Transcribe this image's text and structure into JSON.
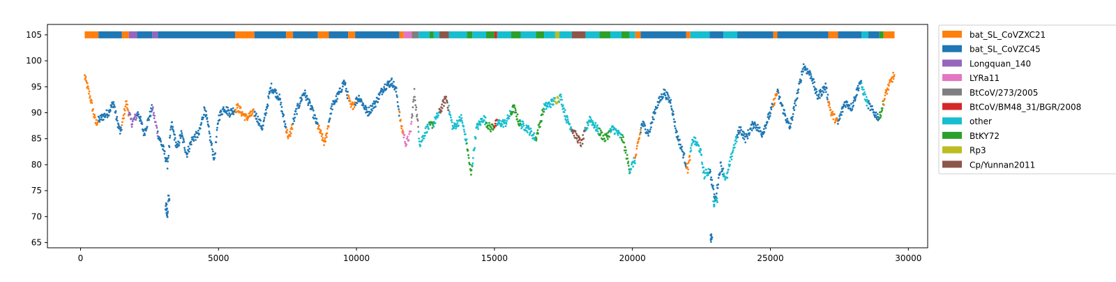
{
  "chart_data": {
    "type": "scatter",
    "title": "",
    "xlabel": "",
    "ylabel": "",
    "xlim": [
      -1200,
      30700
    ],
    "ylim": [
      64,
      107
    ],
    "xticks": [
      0,
      5000,
      10000,
      15000,
      20000,
      25000,
      30000
    ],
    "yticks": [
      65,
      70,
      75,
      80,
      85,
      90,
      95,
      100,
      105
    ],
    "legend_position": "outside-right",
    "band_y": 105,
    "legend": [
      {
        "name": "bat_SL_CoVZXC21",
        "color": "#ff7f0e"
      },
      {
        "name": "bat_SL_CoVZC45",
        "color": "#1f77b4"
      },
      {
        "name": "Longquan_140",
        "color": "#9467bd"
      },
      {
        "name": "LYRa11",
        "color": "#e377c2"
      },
      {
        "name": "BtCoV/273/2005",
        "color": "#7f7f7f"
      },
      {
        "name": "BtCoV/BM48_31/BGR/2008",
        "color": "#d62728"
      },
      {
        "name": "other",
        "color": "#17becf"
      },
      {
        "name": "BtKY72",
        "color": "#2ca02c"
      },
      {
        "name": "Rp3",
        "color": "#bcbd22"
      },
      {
        "name": "Cp/Yunnan2011",
        "color": "#8c564b"
      }
    ],
    "segments": [
      {
        "series": "bat_SL_CoVZXC21",
        "from": 150,
        "to": 650
      },
      {
        "series": "bat_SL_CoVZC45",
        "from": 650,
        "to": 1500
      },
      {
        "series": "bat_SL_CoVZXC21",
        "from": 1500,
        "to": 1750
      },
      {
        "series": "Longquan_140",
        "from": 1750,
        "to": 2050
      },
      {
        "series": "bat_SL_CoVZC45",
        "from": 2050,
        "to": 2600
      },
      {
        "series": "Longquan_140",
        "from": 2600,
        "to": 2800
      },
      {
        "series": "bat_SL_CoVZC45",
        "from": 2800,
        "to": 5600
      },
      {
        "series": "bat_SL_CoVZXC21",
        "from": 5600,
        "to": 6300
      },
      {
        "series": "bat_SL_CoVZC45",
        "from": 6300,
        "to": 7450
      },
      {
        "series": "bat_SL_CoVZXC21",
        "from": 7450,
        "to": 7700
      },
      {
        "series": "bat_SL_CoVZC45",
        "from": 7700,
        "to": 8600
      },
      {
        "series": "bat_SL_CoVZXC21",
        "from": 8600,
        "to": 9000
      },
      {
        "series": "bat_SL_CoVZC45",
        "from": 9000,
        "to": 9700
      },
      {
        "series": "bat_SL_CoVZXC21",
        "from": 9700,
        "to": 9950
      },
      {
        "series": "bat_SL_CoVZC45",
        "from": 9950,
        "to": 11550
      },
      {
        "series": "bat_SL_CoVZXC21",
        "from": 11550,
        "to": 11700
      },
      {
        "series": "LYRa11",
        "from": 11700,
        "to": 12000
      },
      {
        "series": "BtCoV/273/2005",
        "from": 12000,
        "to": 12250
      },
      {
        "series": "other",
        "from": 12250,
        "to": 12650
      },
      {
        "series": "BtKY72",
        "from": 12650,
        "to": 12800
      },
      {
        "series": "other",
        "from": 12800,
        "to": 13000
      },
      {
        "series": "Cp/Yunnan2011",
        "from": 13000,
        "to": 13350
      },
      {
        "series": "other",
        "from": 13350,
        "to": 14000
      },
      {
        "series": "BtKY72",
        "from": 14000,
        "to": 14200
      },
      {
        "series": "other",
        "from": 14200,
        "to": 14700
      },
      {
        "series": "BtKY72",
        "from": 14700,
        "to": 15000
      },
      {
        "series": "BtCoV/BM48_31/BGR/2008",
        "from": 15000,
        "to": 15100
      },
      {
        "series": "other",
        "from": 15100,
        "to": 15600
      },
      {
        "series": "BtKY72",
        "from": 15600,
        "to": 15950
      },
      {
        "series": "other",
        "from": 15950,
        "to": 16500
      },
      {
        "series": "BtKY72",
        "from": 16500,
        "to": 16800
      },
      {
        "series": "other",
        "from": 16800,
        "to": 17200
      },
      {
        "series": "Rp3",
        "from": 17200,
        "to": 17350
      },
      {
        "series": "other",
        "from": 17350,
        "to": 17800
      },
      {
        "series": "Cp/Yunnan2011",
        "from": 17800,
        "to": 18300
      },
      {
        "series": "other",
        "from": 18300,
        "to": 18800
      },
      {
        "series": "BtKY72",
        "from": 18800,
        "to": 19200
      },
      {
        "series": "other",
        "from": 19200,
        "to": 19600
      },
      {
        "series": "BtKY72",
        "from": 19600,
        "to": 19900
      },
      {
        "series": "other",
        "from": 19900,
        "to": 20100
      },
      {
        "series": "bat_SL_CoVZXC21",
        "from": 20100,
        "to": 20300
      },
      {
        "series": "bat_SL_CoVZC45",
        "from": 20300,
        "to": 21950
      },
      {
        "series": "bat_SL_CoVZXC21",
        "from": 21950,
        "to": 22100
      },
      {
        "series": "other",
        "from": 22100,
        "to": 22800
      },
      {
        "series": "bat_SL_CoVZC45",
        "from": 22800,
        "to": 23300
      },
      {
        "series": "other",
        "from": 23300,
        "to": 23800
      },
      {
        "series": "bat_SL_CoVZC45",
        "from": 23800,
        "to": 25100
      },
      {
        "series": "bat_SL_CoVZXC21",
        "from": 25100,
        "to": 25250
      },
      {
        "series": "bat_SL_CoVZC45",
        "from": 25250,
        "to": 27100
      },
      {
        "series": "bat_SL_CoVZXC21",
        "from": 27100,
        "to": 27450
      },
      {
        "series": "bat_SL_CoVZC45",
        "from": 27450,
        "to": 28300
      },
      {
        "series": "other",
        "from": 28300,
        "to": 28550
      },
      {
        "series": "bat_SL_CoVZC45",
        "from": 28550,
        "to": 28950
      },
      {
        "series": "BtKY72",
        "from": 28950,
        "to": 29100
      },
      {
        "series": "bat_SL_CoVZXC21",
        "from": 29100,
        "to": 29500
      }
    ],
    "profile": [
      [
        150,
        97
      ],
      [
        350,
        93
      ],
      [
        550,
        88
      ],
      [
        750,
        89
      ],
      [
        1000,
        90
      ],
      [
        1200,
        92
      ],
      [
        1300,
        89
      ],
      [
        1450,
        86
      ],
      [
        1650,
        92
      ],
      [
        1850,
        88
      ],
      [
        2100,
        90
      ],
      [
        2300,
        86
      ],
      [
        2600,
        91
      ],
      [
        2800,
        86
      ],
      [
        3000,
        83
      ],
      [
        3150,
        80
      ],
      [
        3300,
        88
      ],
      [
        3500,
        83
      ],
      [
        3650,
        86
      ],
      [
        3850,
        82
      ],
      [
        4050,
        85
      ],
      [
        4300,
        86
      ],
      [
        4500,
        91
      ],
      [
        4700,
        85
      ],
      [
        4850,
        81
      ],
      [
        5000,
        89
      ],
      [
        5200,
        91
      ],
      [
        5400,
        90
      ],
      [
        5700,
        91
      ],
      [
        6000,
        89
      ],
      [
        6300,
        90
      ],
      [
        6600,
        87
      ],
      [
        6900,
        95
      ],
      [
        7200,
        93
      ],
      [
        7400,
        88
      ],
      [
        7550,
        85
      ],
      [
        7800,
        90
      ],
      [
        8100,
        94
      ],
      [
        8350,
        91
      ],
      [
        8700,
        86
      ],
      [
        8850,
        84
      ],
      [
        9100,
        91
      ],
      [
        9400,
        94
      ],
      [
        9550,
        96
      ],
      [
        9800,
        91
      ],
      [
        10100,
        93
      ],
      [
        10400,
        90
      ],
      [
        10700,
        92
      ],
      [
        11000,
        95
      ],
      [
        11300,
        96
      ],
      [
        11450,
        94
      ],
      [
        11600,
        88
      ],
      [
        11800,
        84
      ],
      [
        11950,
        86
      ],
      [
        12100,
        94
      ],
      [
        12300,
        84
      ],
      [
        12550,
        87
      ],
      [
        12800,
        88
      ],
      [
        13000,
        90
      ],
      [
        13250,
        93
      ],
      [
        13500,
        87
      ],
      [
        13800,
        89
      ],
      [
        14000,
        84
      ],
      [
        14150,
        78
      ],
      [
        14350,
        87
      ],
      [
        14600,
        89
      ],
      [
        14850,
        87
      ],
      [
        15100,
        88
      ],
      [
        15400,
        88
      ],
      [
        15700,
        91
      ],
      [
        15900,
        88
      ],
      [
        16200,
        87
      ],
      [
        16500,
        85
      ],
      [
        16800,
        91
      ],
      [
        17100,
        92
      ],
      [
        17400,
        93
      ],
      [
        17600,
        89
      ],
      [
        17900,
        86
      ],
      [
        18150,
        84
      ],
      [
        18450,
        89
      ],
      [
        18700,
        87
      ],
      [
        19000,
        85
      ],
      [
        19300,
        87
      ],
      [
        19650,
        85
      ],
      [
        19900,
        79
      ],
      [
        20100,
        81
      ],
      [
        20350,
        88
      ],
      [
        20600,
        86
      ],
      [
        20850,
        91
      ],
      [
        21150,
        94
      ],
      [
        21400,
        92
      ],
      [
        21600,
        86
      ],
      [
        21850,
        82
      ],
      [
        22000,
        79
      ],
      [
        22200,
        85
      ],
      [
        22450,
        83
      ],
      [
        22600,
        78
      ],
      [
        22800,
        79
      ],
      [
        23000,
        73
      ],
      [
        23200,
        80
      ],
      [
        23400,
        77
      ],
      [
        23650,
        83
      ],
      [
        23900,
        87
      ],
      [
        24100,
        85
      ],
      [
        24400,
        88
      ],
      [
        24700,
        86
      ],
      [
        25000,
        90
      ],
      [
        25250,
        94
      ],
      [
        25500,
        90
      ],
      [
        25700,
        87
      ],
      [
        26000,
        94
      ],
      [
        26200,
        99
      ],
      [
        26500,
        97
      ],
      [
        26700,
        93
      ],
      [
        27000,
        95
      ],
      [
        27200,
        90
      ],
      [
        27450,
        88
      ],
      [
        27700,
        92
      ],
      [
        27950,
        91
      ],
      [
        28250,
        96
      ],
      [
        28500,
        92
      ],
      [
        28750,
        90
      ],
      [
        28950,
        89
      ],
      [
        29200,
        94
      ],
      [
        29450,
        97
      ]
    ],
    "outliers": [
      {
        "series": "bat_SL_CoVZC45",
        "points": [
          [
            3100,
            72
          ],
          [
            3150,
            70.5
          ],
          [
            3200,
            73.5
          ],
          [
            3120,
            71
          ]
        ]
      },
      {
        "series": "bat_SL_CoVZC45",
        "points": [
          [
            22850,
            66
          ],
          [
            22870,
            65.5
          ]
        ]
      },
      {
        "series": "other",
        "points": [
          [
            22950,
            72.5
          ],
          [
            23050,
            73
          ]
        ]
      }
    ]
  }
}
